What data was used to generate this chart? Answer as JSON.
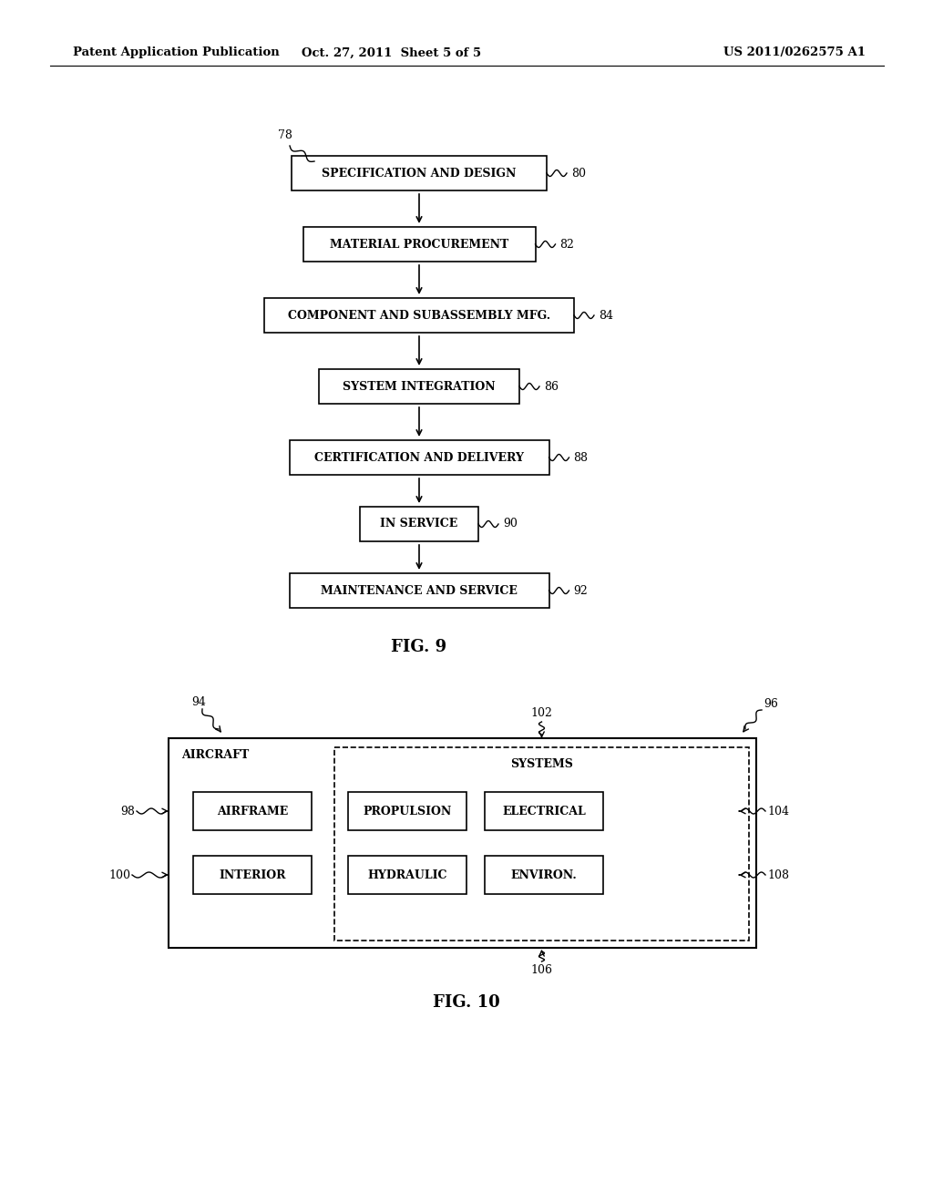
{
  "header_left": "Patent Application Publication",
  "header_center": "Oct. 27, 2011  Sheet 5 of 5",
  "header_right": "US 2011/0262575 A1",
  "fig9_label": "FIG. 9",
  "fig10_label": "FIG. 10",
  "background": "#ffffff",
  "text_color": "#000000",
  "flow_boxes": [
    {
      "label": "SPECIFICATION AND DESIGN",
      "num": "80"
    },
    {
      "label": "MATERIAL PROCUREMENT",
      "num": "82"
    },
    {
      "label": "COMPONENT AND SUBASSEMBLY MFG.",
      "num": "84"
    },
    {
      "label": "SYSTEM INTEGRATION",
      "num": "86"
    },
    {
      "label": "CERTIFICATION AND DELIVERY",
      "num": "88"
    },
    {
      "label": "IN SERVICE",
      "num": "90"
    },
    {
      "label": "MAINTENANCE AND SERVICE",
      "num": "92"
    }
  ]
}
